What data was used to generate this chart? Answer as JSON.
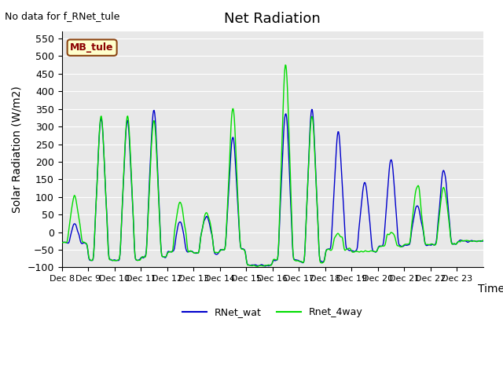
{
  "title": "Net Radiation",
  "ylabel": "Solar Radiation (W/m2)",
  "xlabel": "Time",
  "no_data_text": "No data for f_RNet_tule",
  "legend_label": "MB_tule",
  "ylim": [
    -100,
    570
  ],
  "yticks": [
    -100,
    -50,
    0,
    50,
    100,
    150,
    200,
    250,
    300,
    350,
    400,
    450,
    500,
    550
  ],
  "line1_label": "RNet_wat",
  "line1_color": "#0000cc",
  "line2_label": "Rnet_4way",
  "line2_color": "#00dd00",
  "xtick_labels": [
    "Dec 8",
    "Dec 9",
    "Dec 10",
    "Dec 11",
    "Dec 12",
    "Dec 13",
    "Dec 14",
    "Dec 15",
    "Dec 16",
    "Dec 17",
    "Dec 18",
    "Dec 19",
    "Dec 20",
    "Dec 21",
    "Dec 22",
    "Dec 23"
  ],
  "title_fontsize": 13,
  "label_fontsize": 10,
  "tick_fontsize": 9
}
